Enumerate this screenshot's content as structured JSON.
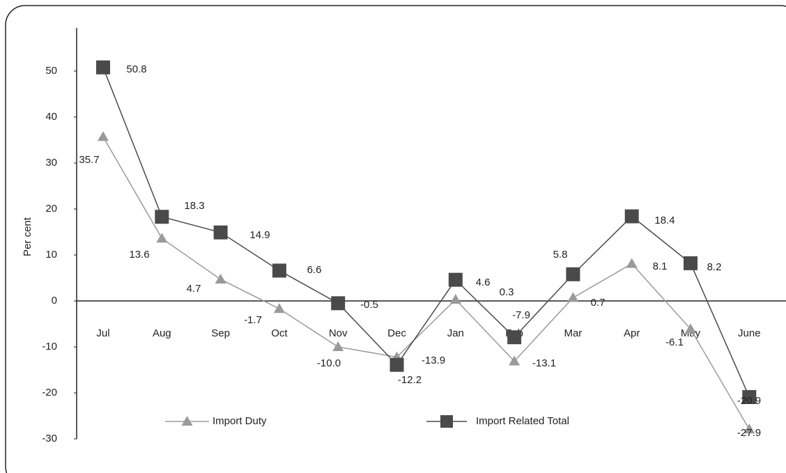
{
  "chart_data": {
    "type": "line",
    "y_label": "Per cent",
    "categories": [
      "Jul",
      "Aug",
      "Sep",
      "Oct",
      "Nov",
      "Dec",
      "Jan",
      "Feb",
      "Mar",
      "Apr",
      "May",
      "June"
    ],
    "series": [
      {
        "name": "Import Duty",
        "color": "#9a9a9a",
        "marker": "triangle",
        "values": [
          35.7,
          13.6,
          4.7,
          -1.7,
          -10.0,
          -12.2,
          0.3,
          -13.1,
          0.7,
          8.1,
          -6.1,
          -27.9
        ],
        "value_labels": [
          "35.7",
          "13.6",
          "4.7",
          "-1.7",
          "-10.0",
          "-12.2",
          "0.3",
          "-13.1",
          "0.7",
          "8.1",
          "-6.1",
          "-27.9"
        ]
      },
      {
        "name": "Import Related Total",
        "color": "#4a4a4a",
        "marker": "square",
        "values": [
          50.8,
          18.3,
          14.9,
          6.6,
          -0.5,
          -13.9,
          4.6,
          -7.9,
          5.8,
          18.4,
          8.2,
          -20.9
        ],
        "value_labels": [
          "50.8",
          "18.3",
          "14.9",
          "6.6",
          "-0.5",
          "-13.9",
          "4.6",
          "-7.9",
          "5.8",
          "18.4",
          "8.2",
          "-20.9"
        ]
      }
    ],
    "ylim": [
      -30,
      55
    ],
    "yticks": [
      -30,
      -20,
      -10,
      0,
      10,
      20,
      30,
      40,
      50
    ],
    "grid": false,
    "legend": "bottom"
  }
}
